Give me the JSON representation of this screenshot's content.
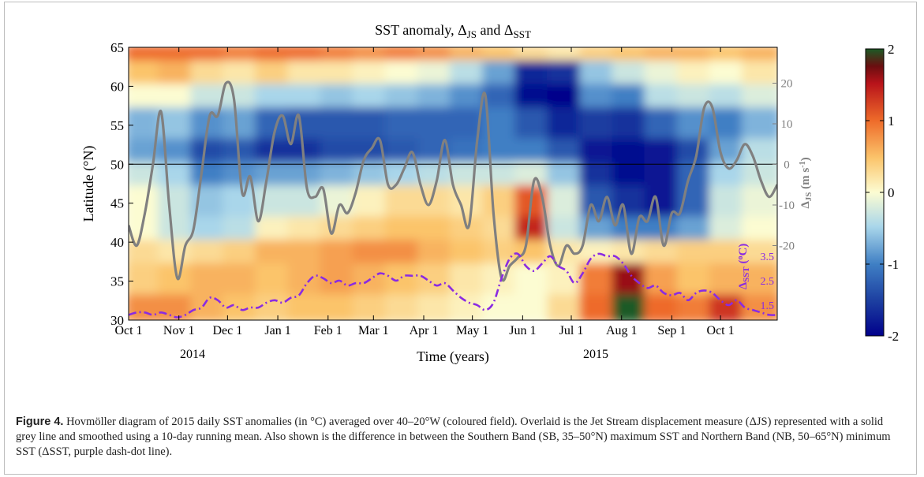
{
  "chart_data": {
    "type": "heatmap",
    "title": "SST anomaly, ΔJS and ΔSST",
    "title_parts": {
      "main": "SST anomaly, Δ",
      "sub1": "JS",
      "and": " and Δ",
      "sub2": "SST"
    },
    "xlabel": "Time (years)",
    "ylabel": "Latitude (°N)",
    "x_ticks": [
      "Oct 1",
      "Nov 1",
      "Dec 1",
      "Jan 1",
      "Feb 1",
      "Mar 1",
      "Apr 1",
      "May 1",
      "Jun 1",
      "Jul 1",
      "Aug 1",
      "Sep 1",
      "Oct 1"
    ],
    "x_year_labels": [
      "2014",
      "2015"
    ],
    "xlim_days": [
      0,
      400
    ],
    "ylim": [
      30,
      65
    ],
    "y_ticks": [
      30,
      35,
      40,
      45,
      50,
      55,
      60,
      65
    ],
    "reference_line_latitude": 50,
    "colorbar": {
      "min": -2,
      "max": 2,
      "ticks": [
        -2,
        -1,
        0,
        1,
        2
      ],
      "colormap": "blue-white-red-green"
    },
    "right_axis_js": {
      "label": "ΔJS (m s⁻¹)",
      "label_parts": {
        "main": "Δ",
        "sub": "JS",
        "unit": " (m s",
        "sup": "-1",
        "close": ")"
      },
      "ticks": [
        -20,
        -10,
        0,
        10,
        20
      ],
      "color": "#808080"
    },
    "right_axis_sst": {
      "label": "ΔSST (°C)",
      "label_parts": {
        "main": "Δ",
        "sub": "SST",
        "unit": " (",
        "sup": "o",
        "close": "C)"
      },
      "ticks": [
        1.5,
        2.5,
        3.5
      ],
      "color": "#8a2be2"
    },
    "series": [
      {
        "name": "ΔJS",
        "color": "#808080",
        "line_style": "solid",
        "x_days": [
          0,
          5,
          10,
          15,
          20,
          25,
          30,
          35,
          40,
          45,
          50,
          55,
          60,
          65,
          70,
          75,
          80,
          85,
          90,
          95,
          100,
          105,
          110,
          115,
          120,
          125,
          130,
          135,
          140,
          145,
          150,
          155,
          160,
          165,
          170,
          175,
          180,
          185,
          190,
          195,
          200,
          205,
          210,
          215,
          220,
          225,
          230,
          235,
          240,
          245,
          250,
          255,
          260,
          265,
          270,
          275,
          280,
          285,
          290,
          295,
          300,
          305,
          310,
          315,
          320,
          325,
          330,
          335,
          340,
          345,
          350,
          355,
          360,
          365,
          370,
          375,
          380,
          385,
          390,
          395,
          400
        ],
        "values": [
          -15,
          -20,
          -12,
          0,
          13,
          -10,
          -28,
          -20,
          -16,
          -2,
          12,
          12,
          20,
          16,
          -7,
          -3,
          -14,
          -4,
          8,
          12,
          5,
          12,
          -6,
          -8,
          -6,
          -17,
          -10,
          -12,
          -7,
          1,
          4,
          6,
          -5,
          -5,
          -1,
          3,
          -5,
          -10,
          -4,
          6,
          -5,
          -10,
          -15,
          6,
          17,
          -12,
          -28,
          -25,
          -23,
          -20,
          -4,
          -8,
          -20,
          -25,
          -20,
          -22,
          -20,
          -10,
          -14,
          -8,
          -15,
          -10,
          -22,
          -13,
          -14,
          -8,
          -20,
          -12,
          -12,
          -4,
          2,
          14,
          14,
          3,
          -1,
          1,
          5,
          2,
          -4,
          -8,
          -5
        ]
      },
      {
        "name": "ΔSST",
        "color": "#8a2be2",
        "line_style": "dash-dot",
        "x_days": [
          0,
          5,
          10,
          15,
          20,
          25,
          30,
          35,
          40,
          45,
          50,
          55,
          60,
          65,
          70,
          75,
          80,
          85,
          90,
          95,
          100,
          105,
          110,
          115,
          120,
          125,
          130,
          135,
          140,
          145,
          150,
          155,
          160,
          165,
          170,
          175,
          180,
          185,
          190,
          195,
          200,
          205,
          210,
          215,
          220,
          225,
          230,
          235,
          240,
          245,
          250,
          255,
          260,
          265,
          270,
          275,
          280,
          285,
          290,
          295,
          300,
          305,
          310,
          315,
          320,
          325,
          330,
          335,
          340,
          345,
          350,
          355,
          360,
          365,
          370,
          375,
          380,
          385,
          390,
          395,
          400
        ],
        "values": [
          1.1,
          1.2,
          1.2,
          1.1,
          1.2,
          1.1,
          1.0,
          1.1,
          1.3,
          1.4,
          1.8,
          1.7,
          1.4,
          1.5,
          1.3,
          1.4,
          1.4,
          1.6,
          1.7,
          1.6,
          1.8,
          1.9,
          2.4,
          2.7,
          2.6,
          2.4,
          2.5,
          2.3,
          2.4,
          2.4,
          2.6,
          2.8,
          2.7,
          2.5,
          2.7,
          2.7,
          2.7,
          2.5,
          2.3,
          2.4,
          2.1,
          1.8,
          1.6,
          1.5,
          1.3,
          1.6,
          2.6,
          3.4,
          3.6,
          3.1,
          2.9,
          3.2,
          3.5,
          3.1,
          2.9,
          2.4,
          2.8,
          3.4,
          3.6,
          3.5,
          3.5,
          3.2,
          2.7,
          2.4,
          2.2,
          2.3,
          2.0,
          1.9,
          2.0,
          1.7,
          2.0,
          2.1,
          2.0,
          1.7,
          1.5,
          1.7,
          1.4,
          1.3,
          1.2,
          1.1,
          1.1
        ]
      }
    ],
    "anomaly_field": {
      "lat_bands": [
        [
          63,
          65
        ],
        [
          60,
          63
        ],
        [
          57,
          60
        ],
        [
          53,
          57
        ],
        [
          50,
          53
        ],
        [
          47,
          50
        ],
        [
          43,
          47
        ],
        [
          40,
          43
        ],
        [
          37,
          40
        ],
        [
          33,
          37
        ],
        [
          30,
          33
        ]
      ],
      "time_segments_days": [
        [
          0,
          20
        ],
        [
          20,
          40
        ],
        [
          40,
          60
        ],
        [
          60,
          80
        ],
        [
          80,
          100
        ],
        [
          100,
          120
        ],
        [
          120,
          140
        ],
        [
          140,
          160
        ],
        [
          160,
          180
        ],
        [
          180,
          200
        ],
        [
          200,
          220
        ],
        [
          220,
          240
        ],
        [
          240,
          260
        ],
        [
          260,
          280
        ],
        [
          280,
          300
        ],
        [
          300,
          320
        ],
        [
          320,
          340
        ],
        [
          340,
          360
        ],
        [
          360,
          380
        ],
        [
          380,
          400
        ]
      ],
      "values": [
        [
          1.0,
          1.0,
          1.0,
          0.9,
          1.0,
          1.0,
          0.9,
          0.8,
          0.9,
          0.8,
          0.6,
          0.5,
          0.3,
          0.2,
          0.4,
          0.5,
          0.6,
          0.6,
          0.5,
          0.6
        ],
        [
          0.5,
          0.6,
          0.3,
          0.2,
          0.4,
          0.2,
          0.2,
          0.1,
          0.0,
          -0.1,
          -0.4,
          -0.8,
          -1.7,
          -1.6,
          -0.6,
          -0.3,
          -0.1,
          0.1,
          0.0,
          0.2
        ],
        [
          0.0,
          0.0,
          -0.3,
          -0.3,
          -0.5,
          -0.5,
          -0.6,
          -0.5,
          -0.6,
          -0.7,
          -0.9,
          -1.2,
          -1.9,
          -2.0,
          -0.9,
          -1.0,
          -0.4,
          -0.3,
          -0.4,
          -0.2
        ],
        [
          -0.7,
          -0.6,
          -0.9,
          -0.8,
          -1.2,
          -1.3,
          -1.3,
          -1.3,
          -1.2,
          -1.2,
          -1.2,
          -1.0,
          -1.3,
          -1.7,
          -1.5,
          -1.6,
          -1.2,
          -0.9,
          -1.0,
          -0.7
        ],
        [
          -0.8,
          -0.9,
          -1.4,
          -1.3,
          -1.6,
          -1.6,
          -1.4,
          -1.4,
          -1.3,
          -1.2,
          -1.1,
          -1.0,
          -1.0,
          -1.3,
          -1.8,
          -1.9,
          -1.8,
          -1.4,
          -0.8,
          -0.4
        ],
        [
          -0.3,
          -0.5,
          -1.0,
          -0.9,
          -0.8,
          -0.8,
          -0.7,
          -0.6,
          -0.5,
          -0.4,
          -0.3,
          -0.3,
          -0.2,
          -0.6,
          -1.6,
          -1.9,
          -1.8,
          -1.2,
          -0.5,
          -0.3
        ],
        [
          0.0,
          -0.3,
          -0.6,
          -0.5,
          -0.3,
          -0.3,
          -0.1,
          0.1,
          0.3,
          0.3,
          0.2,
          0.4,
          1.1,
          -0.2,
          -1.3,
          -1.6,
          -1.8,
          -1.2,
          -0.3,
          -0.1
        ],
        [
          0.0,
          -0.3,
          -0.5,
          -0.4,
          0.1,
          0.2,
          0.3,
          0.4,
          0.5,
          0.5,
          0.4,
          0.3,
          1.4,
          -0.3,
          -0.8,
          -1.0,
          -1.0,
          -0.8,
          -0.2,
          0.0
        ],
        [
          0.3,
          0.2,
          0.3,
          0.4,
          0.6,
          0.6,
          0.7,
          0.8,
          0.8,
          0.6,
          0.5,
          0.4,
          0.5,
          0.2,
          0.1,
          0.2,
          0.3,
          0.4,
          0.4,
          0.3
        ],
        [
          0.4,
          0.5,
          0.6,
          0.6,
          0.5,
          0.6,
          0.7,
          0.6,
          0.5,
          0.4,
          0.2,
          0.1,
          0.0,
          0.1,
          0.9,
          1.6,
          0.7,
          0.5,
          0.6,
          0.6
        ],
        [
          0.8,
          0.8,
          0.6,
          0.5,
          0.4,
          0.5,
          0.5,
          0.4,
          0.3,
          0.2,
          0.1,
          0.0,
          0.0,
          0.3,
          1.0,
          2.0,
          1.0,
          0.9,
          1.3,
          0.8
        ]
      ]
    }
  },
  "caption": {
    "label": "Figure 4.",
    "text": " Hovmöller diagram of 2015 daily SST anomalies (in °C) averaged over 40–20°W (coloured field). Overlaid is the Jet Stream displacement measure (ΔJS) represented with a solid grey line and smoothed using a 10-day running mean. Also shown is the difference in between the Southern Band (SB, 35–50°N) maximum SST and Northern Band (NB, 50–65°N) minimum SST (ΔSST, purple dash-dot line)."
  }
}
